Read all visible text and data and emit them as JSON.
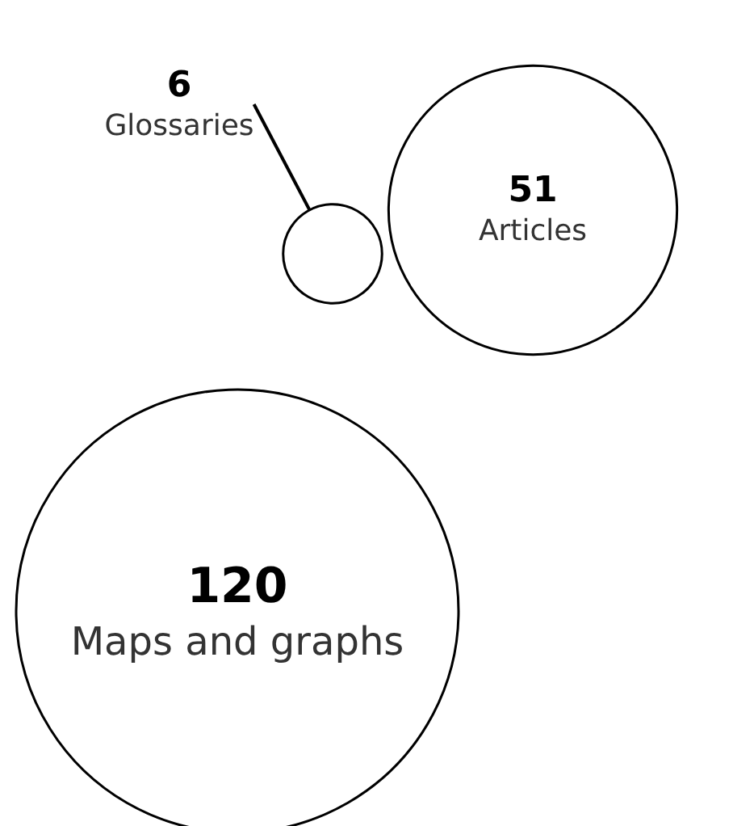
{
  "chart_data": {
    "type": "other",
    "categories": [
      "Maps and graphs",
      "Articles",
      "Glossaries"
    ],
    "values": [
      120,
      51,
      6
    ],
    "data_labels": true
  }
}
